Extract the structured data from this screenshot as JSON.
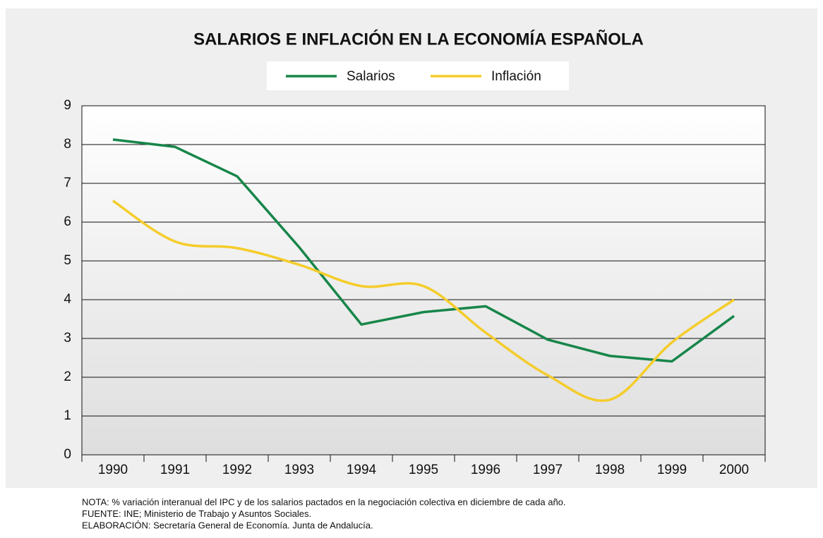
{
  "chart_data": {
    "type": "line",
    "title": "SALARIOS E INFLACIÓN EN LA ECONOMÍA ESPAÑOLA",
    "categories": [
      "1990",
      "1991",
      "1992",
      "1993",
      "1994",
      "1995",
      "1996",
      "1997",
      "1998",
      "1999",
      "2000"
    ],
    "series": [
      {
        "name": "Salarios",
        "color": "#17864a",
        "smooth": false,
        "values": [
          8.13,
          7.94,
          7.18,
          5.35,
          3.36,
          3.68,
          3.83,
          2.97,
          2.55,
          2.41,
          3.58
        ]
      },
      {
        "name": "Inflación",
        "color": "#f5cc2a",
        "smooth": true,
        "values": [
          6.55,
          5.5,
          5.33,
          4.9,
          4.35,
          4.35,
          3.15,
          2.05,
          1.42,
          2.9,
          4.0
        ]
      }
    ],
    "ylim": [
      0,
      9
    ],
    "yticks": [
      0,
      1,
      2,
      3,
      4,
      5,
      6,
      7,
      8,
      9
    ],
    "grid": true,
    "legend": "top",
    "notes": [
      "NOTA: % variación interanual del IPC y de los salarios pactados en la negociación colectiva en diciembre de cada año.",
      "FUENTE: INE; Ministerio de Trabajo y Asuntos Sociales.",
      "ELABORACIÓN: Secretaría General de Economía. Junta de Andalucía."
    ]
  }
}
